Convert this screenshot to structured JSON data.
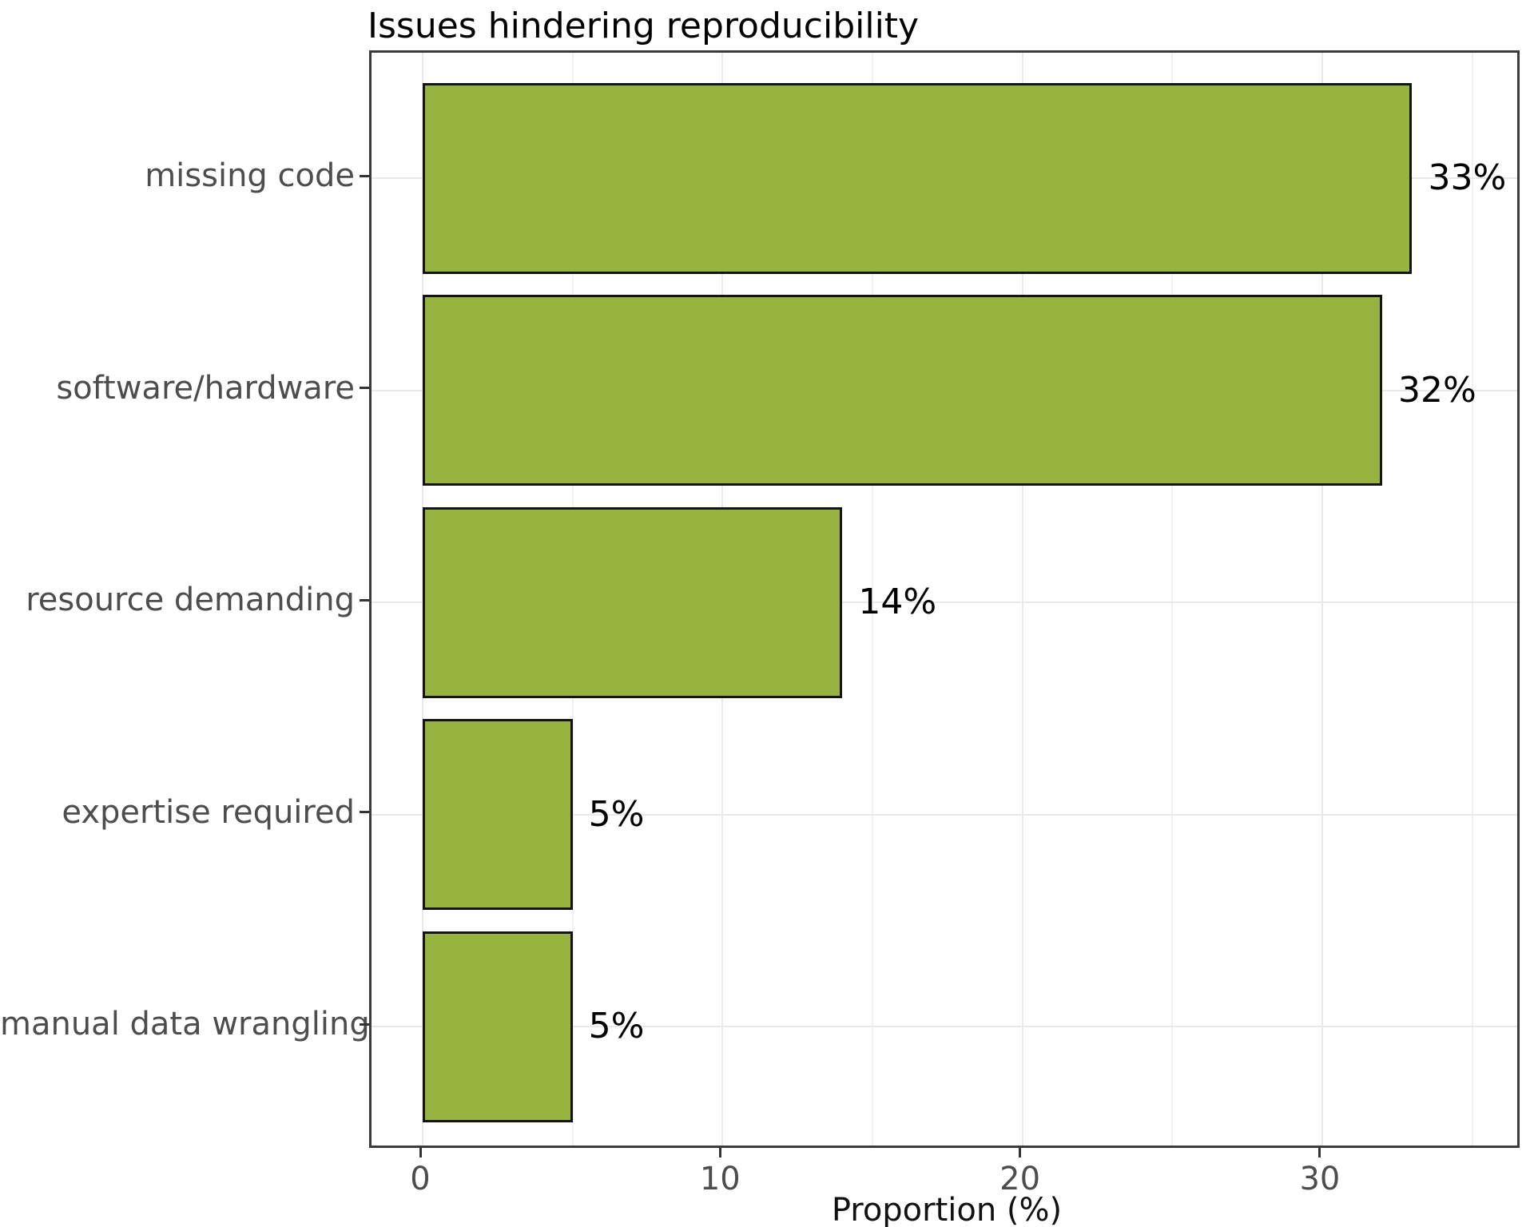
{
  "title": "Issues hindering reproducibility",
  "x_axis_title": "Proportion (%)",
  "colors": {
    "bar_fill": "#97b440",
    "bar_stroke": "#141414",
    "panel_border": "#3b3b3b",
    "grid_major": "#e9e9e9",
    "grid_minor": "#f1f1f1",
    "axis_text": "#4d4d4d",
    "label_text": "#000000"
  },
  "chart_data": {
    "type": "bar",
    "orientation": "horizontal",
    "title": "Issues hindering reproducibility",
    "xlabel": "Proportion (%)",
    "ylabel": "",
    "categories": [
      "missing code",
      "software/hardware",
      "resource demanding",
      "expertise required",
      "manual data wrangling"
    ],
    "values": [
      33,
      32,
      14,
      5,
      5
    ],
    "value_labels": [
      "33%",
      "32%",
      "14%",
      "5%",
      "5%"
    ],
    "xlim": [
      -1.8,
      36.6
    ],
    "x_major_ticks": [
      0,
      10,
      20,
      30
    ],
    "x_major_tick_labels": [
      "0",
      "10",
      "20",
      "30"
    ],
    "x_minor_gridlines": [
      5,
      15,
      25,
      35
    ],
    "grid": "light gray major + minor vertical, major horizontal at category centers",
    "legend": false
  }
}
